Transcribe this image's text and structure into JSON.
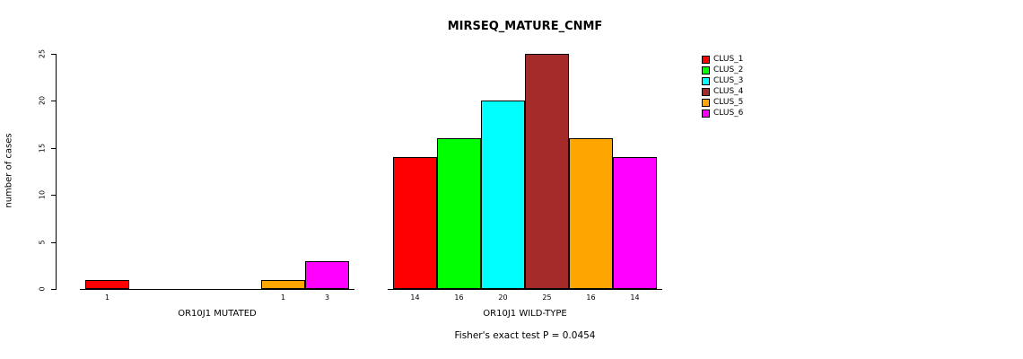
{
  "chart_data": {
    "type": "bar",
    "title": "MIRSEQ_MATURE_CNMF",
    "ylabel": "number of cases",
    "ylim": [
      0,
      25
    ],
    "yticks": [
      0,
      5,
      10,
      15,
      20,
      25
    ],
    "grid": false,
    "legend_position": "right",
    "series_names": [
      "CLUS_1",
      "CLUS_2",
      "CLUS_3",
      "CLUS_4",
      "CLUS_5",
      "CLUS_6"
    ],
    "colors": [
      "#FF0000",
      "#00FF00",
      "#00FFFF",
      "#A52A2A",
      "#FFA500",
      "#FF00FF"
    ],
    "groups": [
      {
        "label": "OR10J1 MUTATED",
        "values": [
          1,
          0,
          0,
          0,
          1,
          3
        ],
        "bar_labels": [
          "1",
          "",
          "",
          "",
          "1",
          "3"
        ]
      },
      {
        "label": "OR10J1 WILD-TYPE",
        "values": [
          14,
          16,
          20,
          25,
          16,
          14
        ],
        "bar_labels": [
          "14",
          "16",
          "20",
          "25",
          "16",
          "14"
        ]
      }
    ],
    "annotation": "Fisher's exact test P = 0.0454"
  }
}
